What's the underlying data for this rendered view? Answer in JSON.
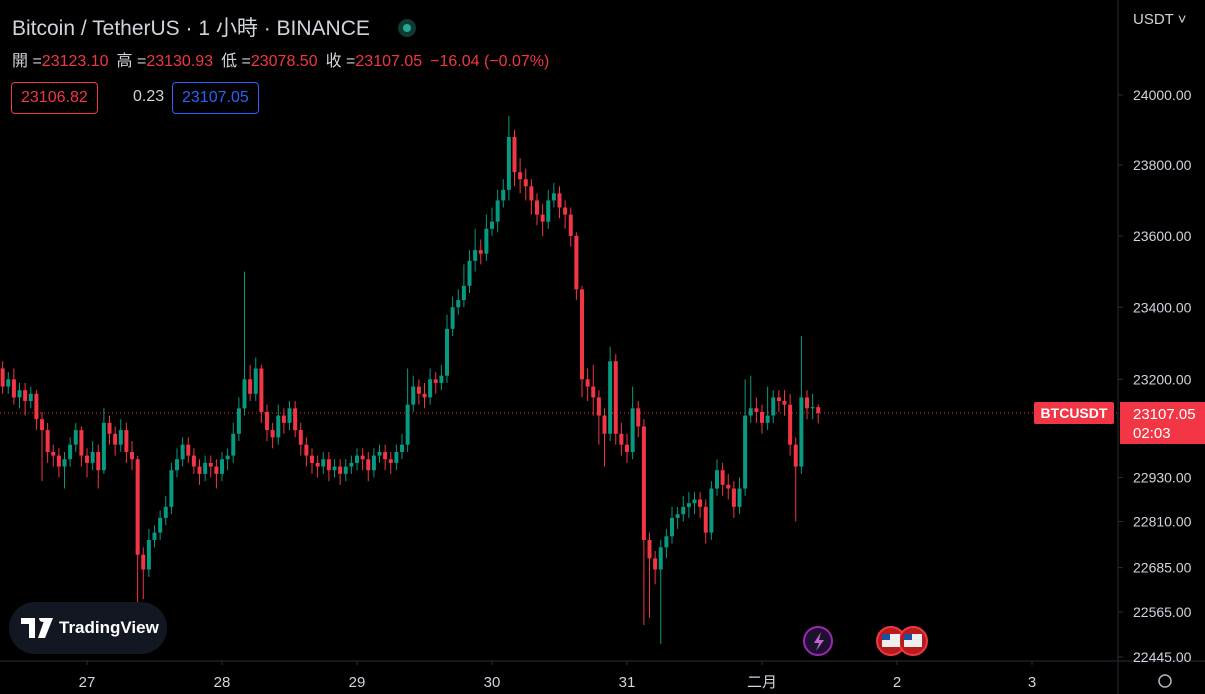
{
  "chart_data": {
    "type": "candlestick",
    "title": "Bitcoin / TetherUS · 1 小時 · BINANCE",
    "ohlc_legend": [
      {
        "label": "開 =",
        "value": "23123.10"
      },
      {
        "label": "高 =",
        "value": "23130.93"
      },
      {
        "label": "低 =",
        "value": "23078.50"
      },
      {
        "label": "收 =",
        "value": "23107.05"
      }
    ],
    "change": "−16.04 (−0.07%)",
    "bid": "23106.82",
    "spread": "0.23",
    "ask": "23107.05",
    "currency": "USDT",
    "symbol": "BTCUSDT",
    "countdown": "02:03",
    "logo": "TradingView",
    "last_price": {
      "value": 23107.05,
      "label": "23107.05"
    },
    "up_color": "#089981",
    "down_color": "#f23645",
    "log_scale": true,
    "xlim": [
      -15.47,
      183.29
    ],
    "xticks": [
      {
        "value": 0,
        "label": "27"
      },
      {
        "value": 24,
        "label": "28"
      },
      {
        "value": 48,
        "label": "29"
      },
      {
        "value": 72,
        "label": "30"
      },
      {
        "value": 96,
        "label": "31"
      },
      {
        "value": 120,
        "label": "二月"
      },
      {
        "value": 144,
        "label": "2"
      },
      {
        "value": 168,
        "label": "3"
      }
    ],
    "ylim": [
      22434,
      24273
    ],
    "yticks": [
      {
        "value": 24000,
        "label": "24000.00"
      },
      {
        "value": 23800,
        "label": "23800.00"
      },
      {
        "value": 23600,
        "label": "23600.00"
      },
      {
        "value": 23400,
        "label": "23400.00"
      },
      {
        "value": 23200,
        "label": "23200.00"
      },
      {
        "value": 22930,
        "label": "22930.00"
      },
      {
        "value": 22810,
        "label": "22810.00"
      },
      {
        "value": 22685,
        "label": "22685.00"
      },
      {
        "value": 22565,
        "label": "22565.00"
      },
      {
        "value": 22445,
        "label": "22445.00"
      }
    ],
    "x": [
      -15,
      -14,
      -13,
      -12,
      -11,
      -10,
      -9,
      -8,
      -7,
      -6,
      -5,
      -4,
      -3,
      -2,
      -1,
      0,
      1,
      2,
      3,
      4,
      5,
      6,
      7,
      8,
      9,
      10,
      11,
      12,
      13,
      14,
      15,
      16,
      17,
      18,
      19,
      20,
      21,
      22,
      23,
      24,
      25,
      26,
      27,
      28,
      29,
      30,
      31,
      32,
      33,
      34,
      35,
      36,
      37,
      38,
      39,
      40,
      41,
      42,
      43,
      44,
      45,
      46,
      47,
      48,
      49,
      50,
      51,
      52,
      53,
      54,
      55,
      56,
      57,
      58,
      59,
      60,
      61,
      62,
      63,
      64,
      65,
      66,
      67,
      68,
      69,
      70,
      71,
      72,
      73,
      74,
      75,
      76,
      77,
      78,
      79,
      80,
      81,
      82,
      83,
      84,
      85,
      86,
      87,
      88,
      89,
      90,
      91,
      92,
      93,
      94,
      95,
      96,
      97,
      98,
      99,
      100,
      101,
      102,
      103,
      104,
      105,
      106,
      107,
      108,
      109,
      110,
      111,
      112,
      113,
      114,
      115,
      116,
      117,
      118,
      119,
      120,
      121,
      122,
      123,
      124,
      125,
      126,
      127,
      128,
      129,
      130
    ],
    "open": [
      23230,
      23180,
      23200,
      23150,
      23170,
      23140,
      23160,
      23090,
      23060,
      23000,
      22990,
      22960,
      22980,
      23020,
      23060,
      22990,
      22970,
      23000,
      22950,
      23080,
      23050,
      23020,
      23060,
      23000,
      22980,
      22720,
      22680,
      22760,
      22780,
      22820,
      22850,
      22950,
      22980,
      23020,
      22990,
      22960,
      22940,
      22970,
      22960,
      22940,
      22980,
      22990,
      23050,
      23120,
      23200,
      23160,
      23230,
      23110,
      23060,
      23040,
      23100,
      23080,
      23120,
      23060,
      23020,
      22990,
      22970,
      22960,
      22980,
      22950,
      22960,
      22940,
      22960,
      22970,
      22990,
      22980,
      22950,
      22990,
      23000,
      22980,
      22970,
      23000,
      23020,
      23130,
      23180,
      23160,
      23150,
      23200,
      23190,
      23210,
      23340,
      23400,
      23420,
      23460,
      23530,
      23560,
      23550,
      23620,
      23640,
      23700,
      23730,
      23880,
      23780,
      23760,
      23740,
      23700,
      23660,
      23640,
      23700,
      23720,
      23680,
      23660,
      23600,
      23450,
      23200,
      23180,
      23150,
      23100,
      23050,
      23250,
      23050,
      23020,
      23000,
      23120,
      23070,
      22760,
      22710,
      22680,
      22740,
      22770,
      22820,
      22830,
      22850,
      22860,
      22870,
      22850,
      22780,
      22900,
      22950,
      22910,
      22900,
      22850,
      22900,
      23100,
      23120,
      23110,
      23080,
      23100,
      23150,
      23140,
      23130,
      23020,
      22960,
      23150,
      23120,
      23123.1
    ],
    "high": [
      23250,
      23220,
      23230,
      23190,
      23190,
      23180,
      23170,
      23110,
      23080,
      23020,
      23010,
      23000,
      23040,
      23080,
      23070,
      23010,
      23030,
      23020,
      23120,
      23100,
      23070,
      23090,
      23080,
      23030,
      22990,
      22740,
      22790,
      22800,
      22840,
      22880,
      22970,
      23010,
      23040,
      23040,
      23010,
      22980,
      22990,
      22990,
      22980,
      23000,
      23010,
      23080,
      23150,
      23500,
      23240,
      23260,
      23240,
      23130,
      23080,
      23130,
      23120,
      23140,
      23140,
      23080,
      23040,
      23010,
      22990,
      23000,
      23000,
      22980,
      22980,
      22980,
      22990,
      23010,
      23010,
      23000,
      23010,
      23020,
      23020,
      23000,
      23020,
      23050,
      23230,
      23210,
      23200,
      23190,
      23230,
      23220,
      23240,
      23380,
      23430,
      23450,
      23520,
      23560,
      23620,
      23590,
      23660,
      23680,
      23730,
      23760,
      23940,
      23900,
      23820,
      23790,
      23760,
      23720,
      23690,
      23730,
      23750,
      23740,
      23700,
      23680,
      23610,
      23460,
      23230,
      23240,
      23170,
      23120,
      23290,
      23270,
      23080,
      23050,
      23180,
      23140,
      23090,
      22780,
      22730,
      22760,
      22790,
      22850,
      22850,
      22880,
      22890,
      22890,
      22890,
      22870,
      22920,
      22980,
      22970,
      22940,
      22920,
      22930,
      23200,
      23210,
      23150,
      23130,
      23180,
      23170,
      23170,
      23170,
      23160,
      23040,
      23320,
      23170,
      23160,
      23130.93
    ],
    "low": [
      23160,
      23160,
      23130,
      23120,
      23100,
      23120,
      23060,
      22920,
      22970,
      22960,
      22930,
      22900,
      22960,
      23000,
      22960,
      22930,
      22950,
      22900,
      22940,
      23020,
      22990,
      23000,
      22970,
      22950,
      22590,
      22600,
      22660,
      22740,
      22760,
      22800,
      22830,
      22930,
      22960,
      22970,
      22940,
      22910,
      22920,
      22930,
      22900,
      22920,
      22950,
      22970,
      23030,
      23100,
      23140,
      23140,
      23080,
      23030,
      23010,
      23020,
      23050,
      23060,
      23040,
      22990,
      22960,
      22940,
      22930,
      22940,
      22920,
      22930,
      22910,
      22920,
      22940,
      22950,
      22950,
      22920,
      22930,
      22970,
      22950,
      22940,
      22950,
      22980,
      23000,
      23110,
      23130,
      23120,
      23130,
      23160,
      23170,
      23190,
      23320,
      23380,
      23400,
      23440,
      23500,
      23520,
      23530,
      23600,
      23610,
      23680,
      23700,
      23740,
      23720,
      23700,
      23660,
      23630,
      23600,
      23620,
      23680,
      23650,
      23620,
      23570,
      23420,
      23150,
      23140,
      23100,
      23020,
      22960,
      23030,
      23020,
      22990,
      22970,
      22980,
      23040,
      22530,
      22550,
      22640,
      22480,
      22710,
      22750,
      22790,
      22810,
      22820,
      22830,
      22820,
      22750,
      22760,
      22880,
      22880,
      22870,
      22820,
      22830,
      22880,
      23080,
      23080,
      23050,
      23060,
      23080,
      23110,
      23100,
      22990,
      22810,
      22940,
      23090,
      23090,
      23078.5
    ],
    "close": [
      23180,
      23200,
      23150,
      23170,
      23140,
      23160,
      23090,
      23060,
      23000,
      22990,
      22960,
      22980,
      23020,
      23060,
      22990,
      22970,
      23000,
      22950,
      23080,
      23050,
      23020,
      23060,
      23000,
      22980,
      22720,
      22680,
      22760,
      22780,
      22820,
      22850,
      22950,
      22980,
      23020,
      22990,
      22960,
      22940,
      22970,
      22960,
      22940,
      22980,
      22990,
      23050,
      23120,
      23200,
      23160,
      23230,
      23110,
      23060,
      23040,
      23100,
      23080,
      23120,
      23060,
      23020,
      22990,
      22970,
      22960,
      22980,
      22950,
      22960,
      22940,
      22960,
      22970,
      22990,
      22980,
      22950,
      22990,
      23000,
      22980,
      22970,
      23000,
      23020,
      23130,
      23180,
      23160,
      23150,
      23200,
      23190,
      23210,
      23340,
      23400,
      23420,
      23460,
      23530,
      23560,
      23550,
      23620,
      23640,
      23700,
      23730,
      23880,
      23780,
      23760,
      23740,
      23700,
      23660,
      23640,
      23700,
      23720,
      23680,
      23660,
      23600,
      23450,
      23200,
      23180,
      23150,
      23100,
      23050,
      23250,
      23050,
      23020,
      23000,
      23120,
      23070,
      22760,
      22710,
      22680,
      22740,
      22770,
      22820,
      22830,
      22850,
      22860,
      22870,
      22850,
      22780,
      22900,
      22950,
      22910,
      22900,
      22850,
      22900,
      23100,
      23120,
      23110,
      23080,
      23100,
      23150,
      23140,
      23130,
      23020,
      22960,
      23150,
      23120,
      23123.1,
      23107.05
    ]
  }
}
